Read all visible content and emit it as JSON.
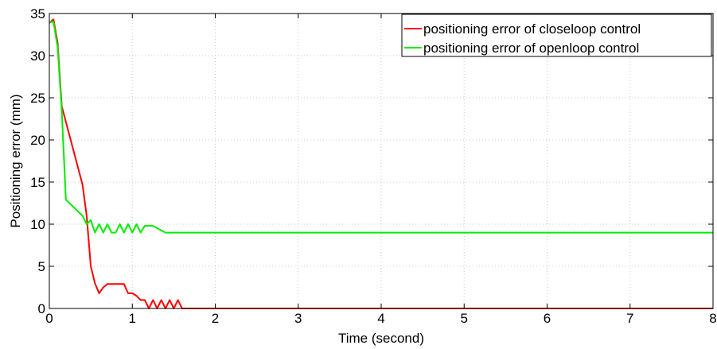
{
  "chart_data": {
    "type": "line",
    "xlabel": "Time (second)",
    "ylabel": "Positioning error (mm)",
    "xlim": [
      0,
      8
    ],
    "ylim": [
      0,
      35
    ],
    "xticks": [
      0,
      1,
      2,
      3,
      4,
      5,
      6,
      7,
      8
    ],
    "yticks": [
      0,
      5,
      10,
      15,
      20,
      25,
      30,
      35
    ],
    "grid": true,
    "legend_position": "top-right",
    "series": [
      {
        "name": "positioning error of closeloop control",
        "color": "#ff0000",
        "points": [
          [
            0,
            33.9
          ],
          [
            0.05,
            34.3
          ],
          [
            0.1,
            31.5
          ],
          [
            0.15,
            24.0
          ],
          [
            0.4,
            14.7
          ],
          [
            0.45,
            11.0
          ],
          [
            0.5,
            5.0
          ],
          [
            0.55,
            3.0
          ],
          [
            0.6,
            1.8
          ],
          [
            0.65,
            2.5
          ],
          [
            0.7,
            2.9
          ],
          [
            0.75,
            2.9
          ],
          [
            0.9,
            2.9
          ],
          [
            0.95,
            1.8
          ],
          [
            1.0,
            1.8
          ],
          [
            1.05,
            1.5
          ],
          [
            1.1,
            1.0
          ],
          [
            1.15,
            1.0
          ],
          [
            1.2,
            0.0
          ],
          [
            1.25,
            1.0
          ],
          [
            1.3,
            0.0
          ],
          [
            1.35,
            1.0
          ],
          [
            1.4,
            0.0
          ],
          [
            1.45,
            1.0
          ],
          [
            1.5,
            0.0
          ],
          [
            1.55,
            1.0
          ],
          [
            1.6,
            0.0
          ],
          [
            8.0,
            0.0
          ]
        ]
      },
      {
        "name": "positioning error of openloop control",
        "color": "#00ee00",
        "points": [
          [
            0,
            34.0
          ],
          [
            0.05,
            34.0
          ],
          [
            0.1,
            31.0
          ],
          [
            0.15,
            23.5
          ],
          [
            0.2,
            12.9
          ],
          [
            0.4,
            11.0
          ],
          [
            0.45,
            10.0
          ],
          [
            0.5,
            10.5
          ],
          [
            0.55,
            9.0
          ],
          [
            0.6,
            10.0
          ],
          [
            0.65,
            9.0
          ],
          [
            0.7,
            10.0
          ],
          [
            0.75,
            9.0
          ],
          [
            0.8,
            9.0
          ],
          [
            0.85,
            10.0
          ],
          [
            0.9,
            9.0
          ],
          [
            0.95,
            10.0
          ],
          [
            1.0,
            9.0
          ],
          [
            1.05,
            10.0
          ],
          [
            1.1,
            9.0
          ],
          [
            1.15,
            9.8
          ],
          [
            1.25,
            9.8
          ],
          [
            1.4,
            9.0
          ],
          [
            8.0,
            9.0
          ]
        ]
      }
    ]
  }
}
